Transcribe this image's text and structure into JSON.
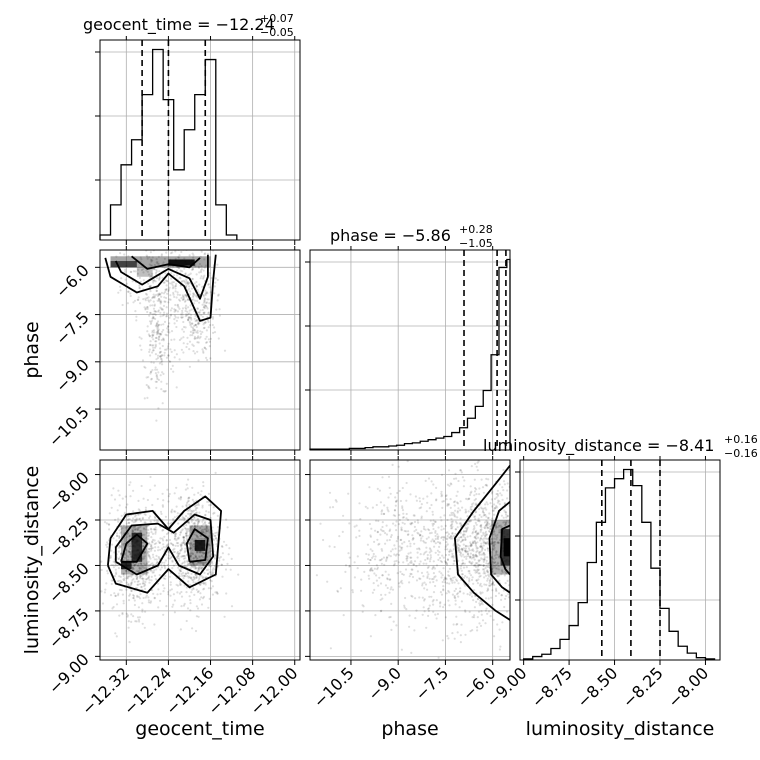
{
  "chart_data": {
    "type": "corner",
    "parameters": [
      "geocent_time",
      "phase",
      "luminosity_distance"
    ],
    "titles": [
      {
        "param": "geocent_time",
        "text": "geocent_time = −12.24",
        "plus": "+0.07",
        "minus": "−0.05"
      },
      {
        "param": "phase",
        "text": "phase = −5.86",
        "plus": "+0.28",
        "minus": "−1.05"
      },
      {
        "param": "luminosity_distance",
        "text": "luminosity_distance = −8.41",
        "plus": "+0.16",
        "minus": "−0.16"
      }
    ],
    "ranges": {
      "geocent_time": [
        -12.37,
        -11.99
      ],
      "phase": [
        -11.8,
        -5.45
      ],
      "luminosity_distance": [
        -9.02,
        -7.92
      ]
    },
    "ticks": {
      "geocent_time": {
        "values": [
          -12.32,
          -12.24,
          -12.16,
          -12.08,
          -12.0
        ],
        "labels": [
          "−12.32",
          "−12.24",
          "−12.16",
          "−12.08",
          "−12.00"
        ]
      },
      "phase": {
        "values": [
          -10.5,
          -9.0,
          -7.5,
          -6.0
        ],
        "labels": [
          "−10.5",
          "−9.0",
          "−7.5",
          "−6.0"
        ]
      },
      "luminosity_distance": {
        "values": [
          -9.0,
          -8.75,
          -8.5,
          -8.25,
          -8.0
        ],
        "labels": [
          "−9.00",
          "−8.75",
          "−8.50",
          "−8.25",
          "−8.00"
        ]
      }
    },
    "quantile_lines": {
      "geocent_time": [
        -12.29,
        -12.24,
        -12.17
      ],
      "phase": [
        -6.91,
        -5.86,
        -5.58
      ],
      "luminosity_distance": [
        -8.57,
        -8.41,
        -8.25
      ]
    },
    "histograms": {
      "geocent_time": {
        "edges": [
          -12.37,
          -12.35,
          -12.33,
          -12.31,
          -12.29,
          -12.27,
          -12.25,
          -12.23,
          -12.21,
          -12.19,
          -12.17,
          -12.15,
          -12.13,
          -12.11
        ],
        "counts": [
          5,
          35,
          75,
          100,
          145,
          190,
          140,
          70,
          110,
          145,
          180,
          35,
          5
        ]
      },
      "phase": {
        "edges": [
          -11.8,
          -11.55,
          -11.3,
          -11.05,
          -10.8,
          -10.55,
          -10.3,
          -10.05,
          -9.8,
          -9.55,
          -9.3,
          -9.05,
          -8.8,
          -8.55,
          -8.3,
          -8.05,
          -7.8,
          -7.55,
          -7.3,
          -7.05,
          -6.8,
          -6.55,
          -6.3,
          -6.05,
          -5.8,
          -5.55,
          -5.45
        ],
        "counts": [
          1,
          1,
          1,
          1,
          1,
          2,
          2,
          3,
          4,
          4,
          5,
          6,
          8,
          9,
          11,
          13,
          15,
          17,
          22,
          28,
          40,
          55,
          75,
          120,
          230,
          240
        ]
      },
      "luminosity_distance": {
        "edges": [
          -9.0,
          -8.95,
          -8.9,
          -8.85,
          -8.8,
          -8.75,
          -8.7,
          -8.65,
          -8.6,
          -8.55,
          -8.5,
          -8.45,
          -8.4,
          -8.35,
          -8.3,
          -8.25,
          -8.2,
          -8.15,
          -8.1,
          -8.05,
          -8.0,
          -7.95
        ],
        "counts": [
          1,
          3,
          5,
          10,
          18,
          30,
          50,
          85,
          120,
          150,
          158,
          166,
          152,
          120,
          80,
          45,
          25,
          12,
          6,
          2,
          1
        ]
      }
    },
    "contours_2d": {
      "geocent_time_phase": {
        "blocks": [
          {
            "x": [
              -12.35,
              -12.16
            ],
            "y": [
              -6.0,
              -5.65
            ],
            "shade": 0.35
          },
          {
            "x": [
              -12.35,
              -12.3
            ],
            "y": [
              -6.0,
              -5.8
            ],
            "shade": 0.6
          },
          {
            "x": [
              -12.24,
              -12.19
            ],
            "y": [
              -5.95,
              -5.75
            ],
            "shade": 0.9
          },
          {
            "x": [
              -12.3,
              -12.27
            ],
            "y": [
              -6.3,
              -6.0
            ],
            "shade": 0.25
          }
        ],
        "contours": [
          [
            [
              -12.36,
              -5.7
            ],
            [
              -12.35,
              -6.3
            ],
            [
              -12.3,
              -6.8
            ],
            [
              -12.26,
              -6.6
            ],
            [
              -12.24,
              -6.2
            ],
            [
              -12.21,
              -6.6
            ],
            [
              -12.18,
              -7.7
            ],
            [
              -12.16,
              -7.6
            ],
            [
              -12.155,
              -6.4
            ],
            [
              -12.15,
              -5.6
            ]
          ],
          [
            [
              -12.34,
              -5.8
            ],
            [
              -12.33,
              -6.15
            ],
            [
              -12.29,
              -6.55
            ],
            [
              -12.27,
              -6.35
            ],
            [
              -12.24,
              -6.05
            ],
            [
              -12.2,
              -6.35
            ],
            [
              -12.18,
              -7.0
            ],
            [
              -12.165,
              -6.3
            ],
            [
              -12.165,
              -5.6
            ]
          ],
          [
            [
              -12.31,
              -5.65
            ],
            [
              -12.28,
              -6.05
            ],
            [
              -12.24,
              -5.9
            ],
            [
              -12.2,
              -6.0
            ],
            [
              -12.18,
              -5.7
            ]
          ]
        ],
        "points": {
          "count": 900,
          "centers": [
            [
              -12.27,
              -6.3
            ],
            [
              -12.2,
              -6.6
            ],
            [
              -12.26,
              -8.3
            ],
            [
              -12.19,
              -7.6
            ]
          ],
          "spread": [
            [
              0.03,
              0.6
            ],
            [
              0.03,
              0.8
            ],
            [
              0.015,
              0.9
            ],
            [
              0.02,
              0.7
            ]
          ]
        }
      },
      "geocent_time_luminosity_distance": {
        "blocks": [
          {
            "x": [
              -12.33,
              -12.28
            ],
            "y": [
              -8.55,
              -8.28
            ],
            "shade": 0.3
          },
          {
            "x": [
              -12.31,
              -12.29
            ],
            "y": [
              -8.48,
              -8.32
            ],
            "shade": 0.75
          },
          {
            "x": [
              -12.2,
              -12.16
            ],
            "y": [
              -8.5,
              -8.28
            ],
            "shade": 0.35
          },
          {
            "x": [
              -12.19,
              -12.17
            ],
            "y": [
              -8.42,
              -8.36
            ],
            "shade": 0.85
          },
          {
            "x": [
              -12.33,
              -12.31
            ],
            "y": [
              -8.52,
              -8.48
            ],
            "shade": 0.8
          }
        ],
        "contours": [
          [
            [
              -12.355,
              -8.5
            ],
            [
              -12.34,
              -8.6
            ],
            [
              -12.28,
              -8.65
            ],
            [
              -12.24,
              -8.52
            ],
            [
              -12.2,
              -8.62
            ],
            [
              -12.15,
              -8.55
            ],
            [
              -12.14,
              -8.2
            ],
            [
              -12.17,
              -8.12
            ],
            [
              -12.21,
              -8.2
            ],
            [
              -12.24,
              -8.3
            ],
            [
              -12.27,
              -8.2
            ],
            [
              -12.32,
              -8.22
            ],
            [
              -12.35,
              -8.35
            ],
            [
              -12.355,
              -8.5
            ]
          ],
          [
            [
              -12.34,
              -8.48
            ],
            [
              -12.3,
              -8.55
            ],
            [
              -12.26,
              -8.5
            ],
            [
              -12.24,
              -8.4
            ],
            [
              -12.22,
              -8.5
            ],
            [
              -12.18,
              -8.55
            ],
            [
              -12.155,
              -8.45
            ],
            [
              -12.16,
              -8.25
            ],
            [
              -12.19,
              -8.22
            ],
            [
              -12.23,
              -8.32
            ],
            [
              -12.26,
              -8.27
            ],
            [
              -12.31,
              -8.28
            ],
            [
              -12.34,
              -8.4
            ],
            [
              -12.34,
              -8.48
            ]
          ],
          [
            [
              -12.33,
              -8.48
            ],
            [
              -12.3,
              -8.48
            ],
            [
              -12.28,
              -8.38
            ],
            [
              -12.3,
              -8.33
            ],
            [
              -12.32,
              -8.38
            ],
            [
              -12.33,
              -8.48
            ]
          ],
          [
            [
              -12.2,
              -8.48
            ],
            [
              -12.17,
              -8.47
            ],
            [
              -12.165,
              -8.35
            ],
            [
              -12.19,
              -8.3
            ],
            [
              -12.205,
              -8.38
            ],
            [
              -12.2,
              -8.48
            ]
          ]
        ],
        "points": {
          "count": 1600,
          "centers": [
            [
              -12.3,
              -8.45
            ],
            [
              -12.19,
              -8.4
            ]
          ],
          "spread": [
            [
              0.03,
              0.15
            ],
            [
              0.025,
              0.15
            ]
          ]
        }
      },
      "phase_luminosity_distance": {
        "blocks": [
          {
            "x": [
              -6.05,
              -5.45
            ],
            "y": [
              -8.55,
              -8.25
            ],
            "shade": 0.3
          },
          {
            "x": [
              -5.75,
              -5.45
            ],
            "y": [
              -8.5,
              -8.3
            ],
            "shade": 0.7
          },
          {
            "x": [
              -5.65,
              -5.45
            ],
            "y": [
              -8.45,
              -8.35
            ],
            "shade": 0.95
          }
        ],
        "contours": [
          [
            [
              -5.45,
              -7.95
            ],
            [
              -5.9,
              -8.05
            ],
            [
              -6.6,
              -8.2
            ],
            [
              -7.2,
              -8.35
            ],
            [
              -7.1,
              -8.55
            ],
            [
              -6.6,
              -8.65
            ],
            [
              -5.9,
              -8.75
            ],
            [
              -5.45,
              -8.8
            ]
          ],
          [
            [
              -5.45,
              -8.15
            ],
            [
              -5.8,
              -8.2
            ],
            [
              -6.1,
              -8.35
            ],
            [
              -6.05,
              -8.55
            ],
            [
              -5.7,
              -8.62
            ],
            [
              -5.45,
              -8.65
            ]
          ],
          [
            [
              -5.45,
              -8.28
            ],
            [
              -5.7,
              -8.3
            ],
            [
              -5.75,
              -8.45
            ],
            [
              -5.6,
              -8.52
            ],
            [
              -5.45,
              -8.55
            ]
          ]
        ],
        "points": {
          "count": 1600,
          "centers": [
            [
              -6.2,
              -8.4
            ],
            [
              -8.0,
              -8.42
            ]
          ],
          "spread": [
            [
              0.7,
              0.18
            ],
            [
              1.4,
              0.2
            ]
          ]
        }
      }
    }
  }
}
